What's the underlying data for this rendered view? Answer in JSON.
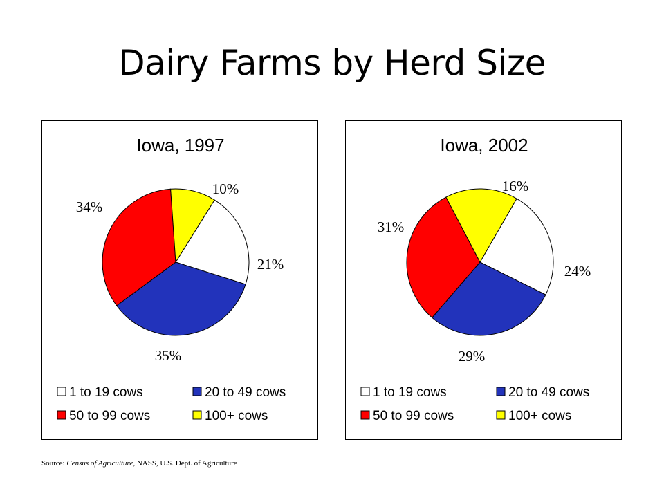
{
  "title": "Dairy Farms by Herd Size",
  "source": {
    "prefix": "Source:",
    "italic": "Census of Agriculture",
    "suffix": ", NASS,  U.S.  Dept.  of Agriculture"
  },
  "colors": {
    "1 to 19 cows": "#ffffff",
    "20 to 49 cows": "#2233bb",
    "50 to 99 cows": "#ff0000",
    "100+ cows": "#ffff00"
  },
  "chart_data": [
    {
      "type": "pie",
      "title": "Iowa, 1997",
      "labels": [
        "1 to 19 cows",
        "20 to 49 cows",
        "50 to 99 cows",
        "100+ cows"
      ],
      "values": [
        21,
        35,
        34,
        10
      ],
      "value_labels": [
        "21%",
        "35%",
        "34%",
        "10%"
      ],
      "legend": [
        "1 to 19 cows",
        "20 to 49 cows",
        "50 to 99 cows",
        "100+ cows"
      ],
      "legend_position": "bottom"
    },
    {
      "type": "pie",
      "title": "Iowa, 2002",
      "labels": [
        "1 to 19 cows",
        "20 to 49 cows",
        "50 to 99 cows",
        "100+ cows"
      ],
      "values": [
        24,
        29,
        31,
        16
      ],
      "value_labels": [
        "24%",
        "29%",
        "31%",
        "16%"
      ],
      "legend": [
        "1 to 19 cows",
        "20 to 49 cows",
        "50 to 99 cows",
        "100+ cows"
      ],
      "legend_position": "bottom"
    }
  ]
}
